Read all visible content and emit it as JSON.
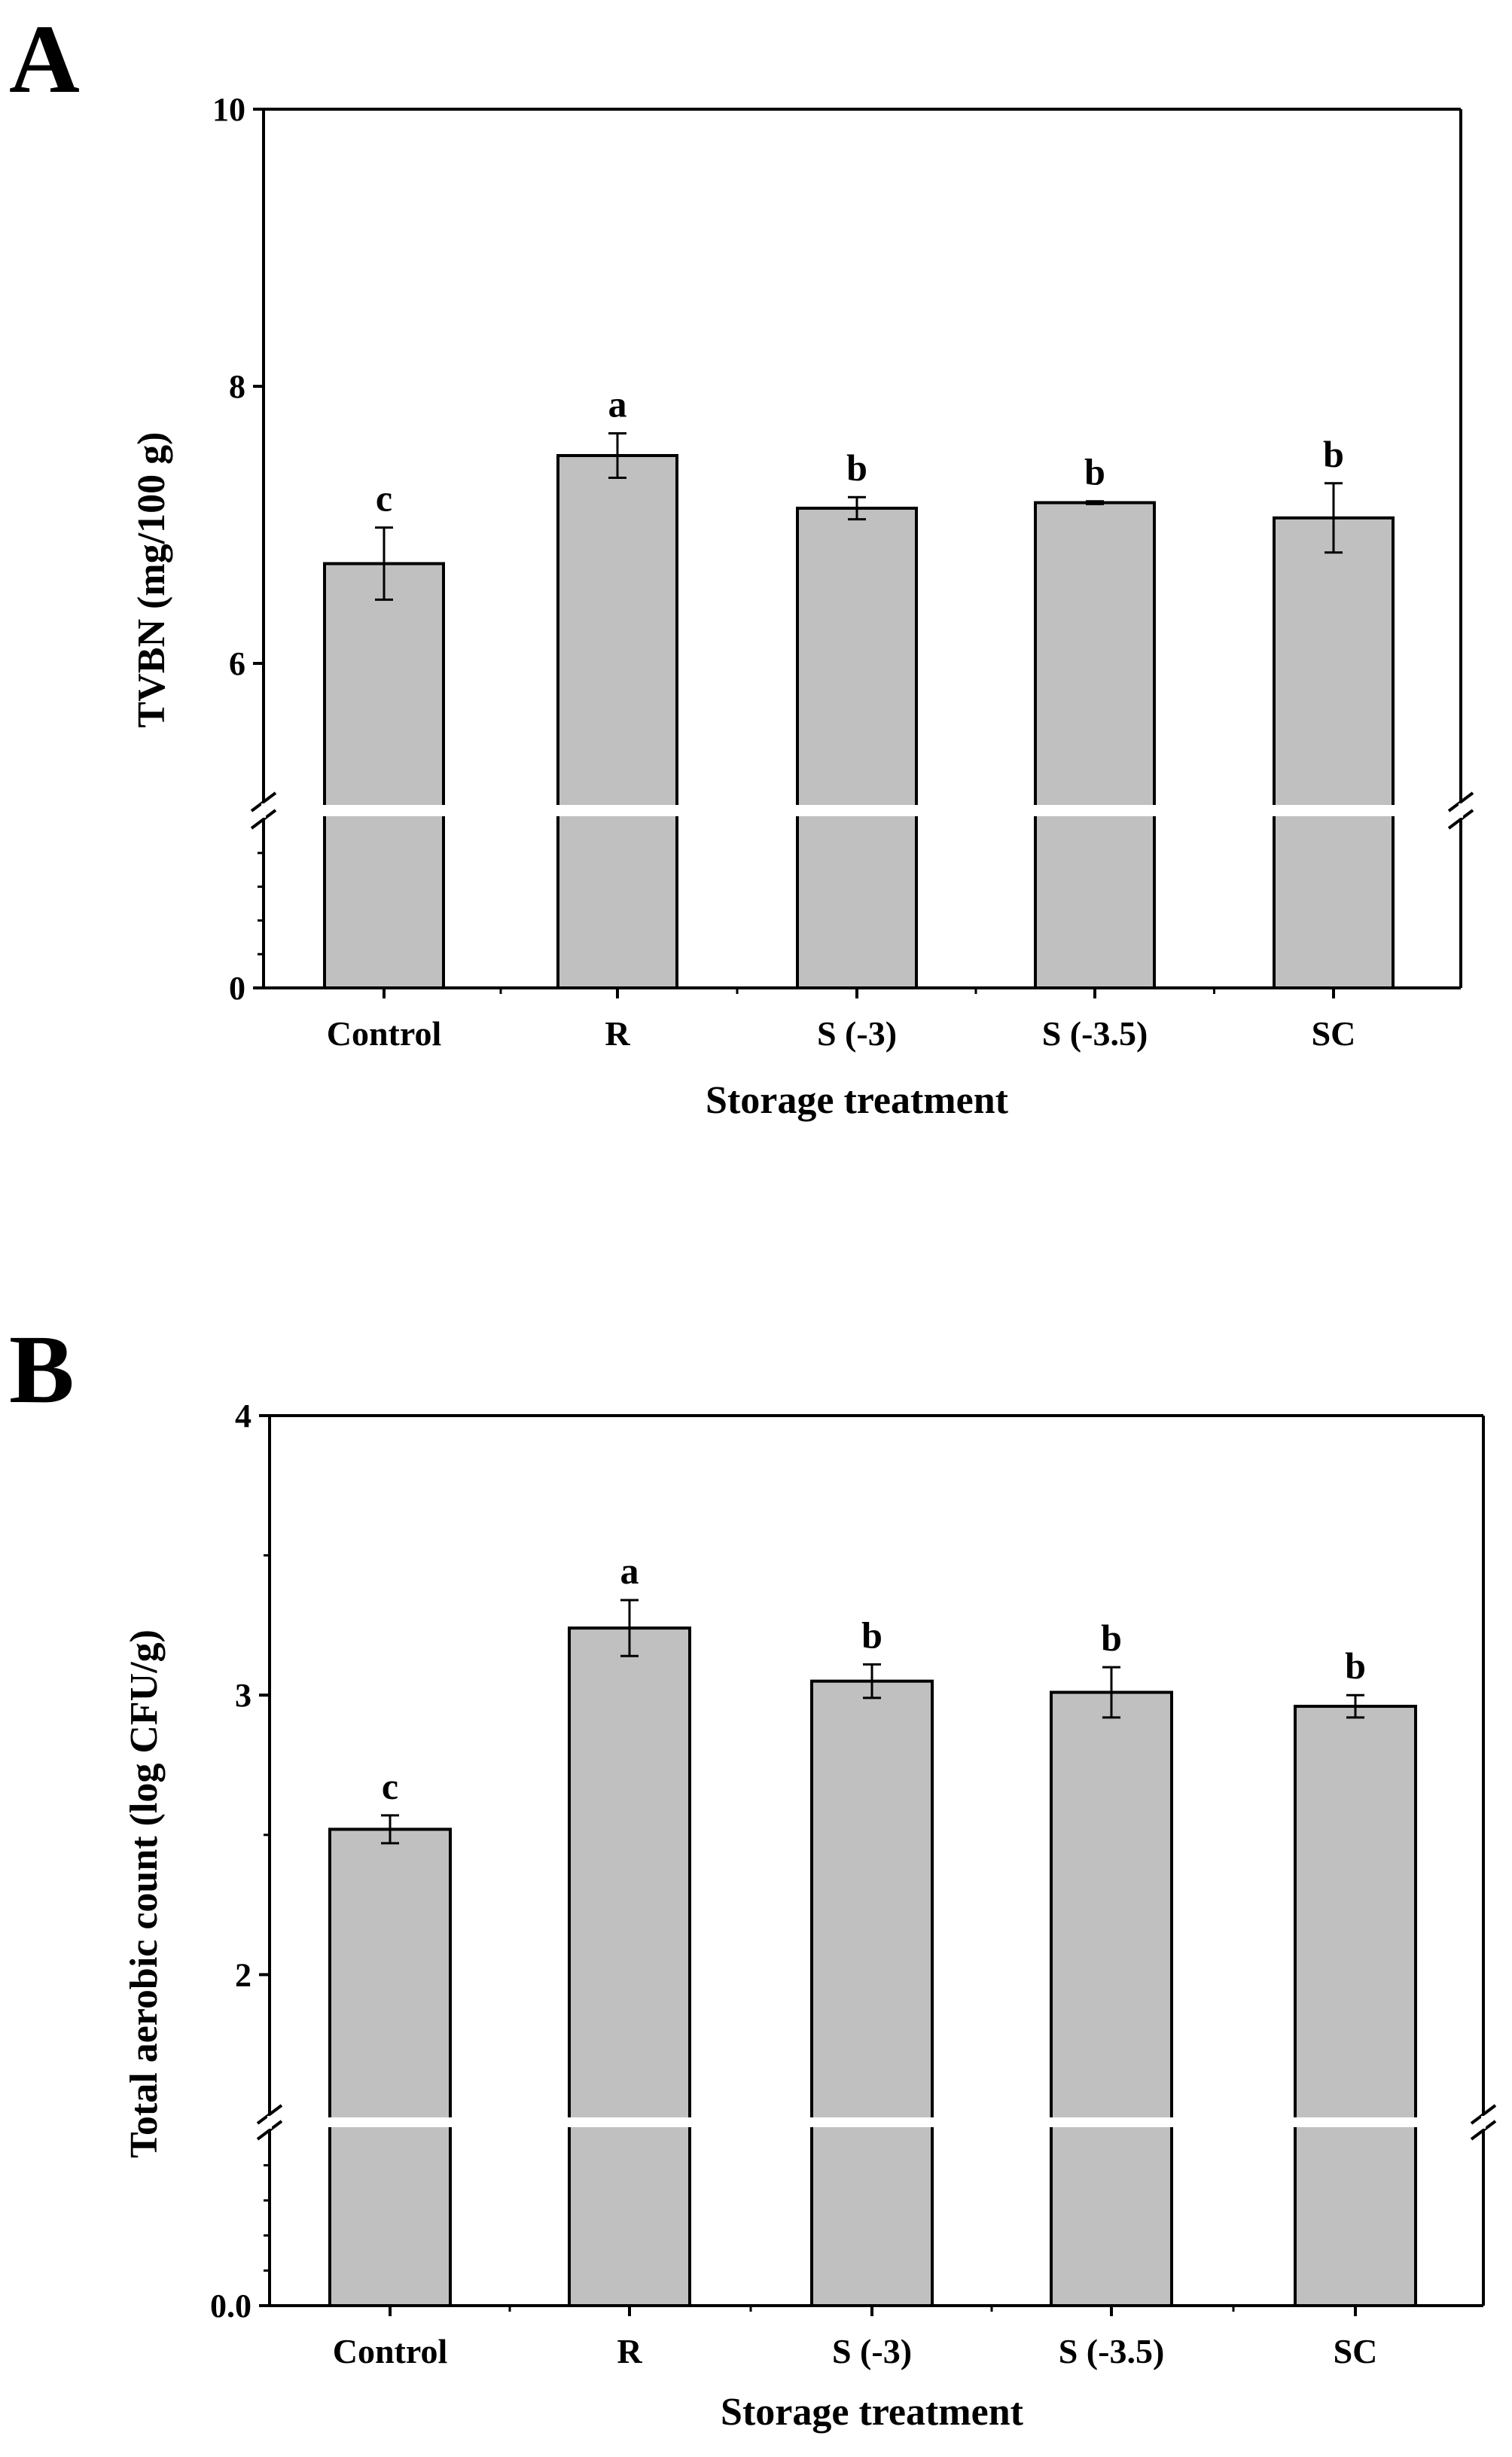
{
  "chart_data": [
    {
      "panel_label": "A",
      "type": "bar",
      "title": "",
      "xlabel": "Storage treatment",
      "ylabel": "TVBN (mg/100 g)",
      "categories": [
        "Control",
        "R",
        "S (-3)",
        "S (-3.5)",
        "SC"
      ],
      "values": [
        6.72,
        7.5,
        7.12,
        7.16,
        7.05
      ],
      "errors": [
        0.26,
        0.16,
        0.08,
        0.01,
        0.25
      ],
      "significance": [
        "c",
        "a",
        "b",
        "b",
        "b"
      ],
      "ylim": [
        0,
        10
      ],
      "axis_break": [
        0,
        5.0
      ],
      "upper_segment": [
        5.0,
        10
      ],
      "y_ticks": [
        0,
        6,
        8,
        10
      ],
      "y_tick_labels": [
        "0",
        "6",
        "8",
        "10"
      ],
      "bar_color": "#c0c0c0",
      "grid": false
    },
    {
      "panel_label": "B",
      "type": "bar",
      "title": "",
      "xlabel": "Storage treatment",
      "ylabel": "Total aerobic count (log CFU/g)",
      "categories": [
        "Control",
        "R",
        "S (-3)",
        "S (-3.5)",
        "SC"
      ],
      "values": [
        2.52,
        3.24,
        3.05,
        3.01,
        2.96
      ],
      "errors": [
        0.05,
        0.1,
        0.06,
        0.09,
        0.04
      ],
      "significance": [
        "c",
        "a",
        "b",
        "b",
        "b"
      ],
      "ylim": [
        0,
        4
      ],
      "axis_break": [
        0,
        1.5
      ],
      "upper_segment": [
        1.5,
        4
      ],
      "y_ticks": [
        0,
        2,
        3,
        4
      ],
      "y_tick_labels": [
        "0.0",
        "2",
        "3",
        "4"
      ],
      "bar_color": "#c0c0c0",
      "grid": false
    }
  ]
}
